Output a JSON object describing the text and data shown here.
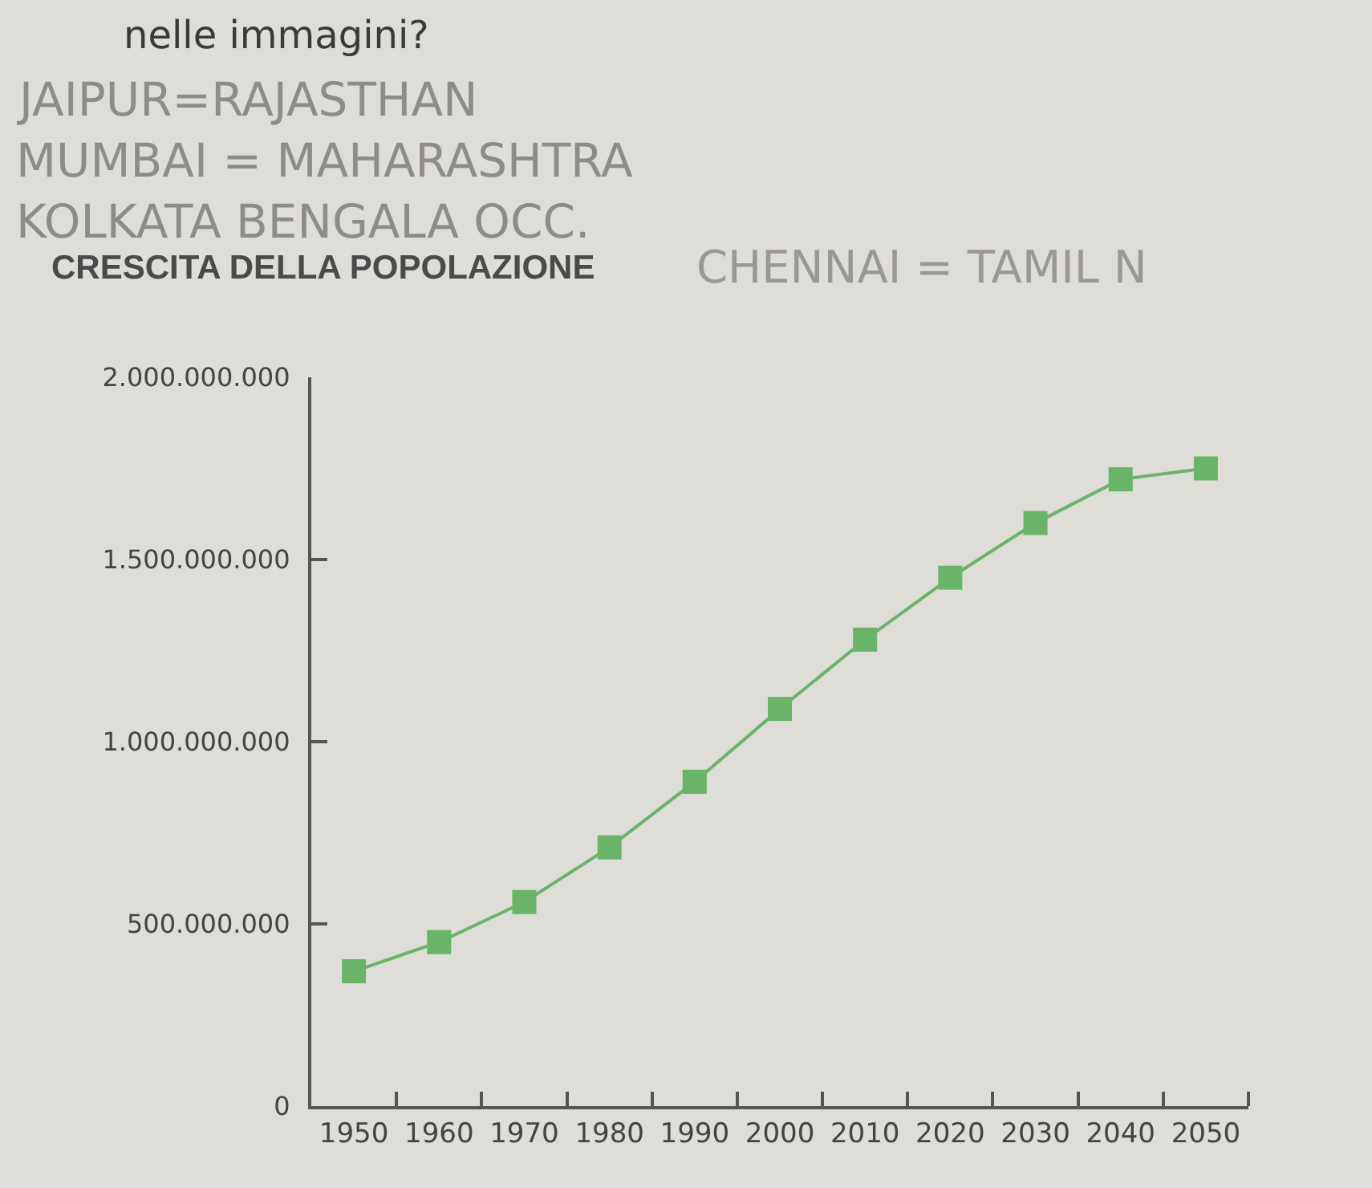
{
  "chart_data": {
    "type": "line",
    "title": "CRESCITA DELLA POPOLAZIONE",
    "annotations": [
      "nelle immagini?",
      "JAIPUR=RAJASTHAN",
      "MUMBAI = MAHARASHTRA",
      "KOLKATA BENGALA OCC.",
      "CHENNAI = TAMIL N"
    ],
    "x": [
      1950,
      1960,
      1970,
      1980,
      1990,
      2000,
      2010,
      2020,
      2030,
      2040,
      2050
    ],
    "series": [
      {
        "color": "#6ab46a",
        "values": [
          370000000,
          450000000,
          560000000,
          710000000,
          890000000,
          1090000000,
          1280000000,
          1450000000,
          1600000000,
          1720000000,
          1750000000
        ]
      }
    ],
    "xlim": [
      1945,
      2055
    ],
    "xticks": [
      1950,
      {
        "value": 1955,
        "label": null
      },
      1960,
      {
        "value": 1965,
        "label": null
      },
      1970,
      {
        "value": 1975,
        "label": null
      },
      1980,
      {
        "value": 1985,
        "label": null
      },
      1990,
      {
        "value": 1995,
        "label": null
      },
      2000,
      {
        "value": 2005,
        "label": null
      },
      2010,
      {
        "value": 2015,
        "label": null
      },
      2020,
      {
        "value": 2025,
        "label": null
      },
      2030,
      {
        "value": 2035,
        "label": null
      },
      2040,
      {
        "value": 2045,
        "label": null
      },
      2050,
      {
        "value": 2055,
        "label": null
      }
    ],
    "ylim": [
      0,
      2000000000
    ],
    "yticks": [
      0,
      {
        "value": 500000000,
        "label": "500.000.000"
      },
      {
        "value": 1000000000,
        "label": "1.000.000.000"
      },
      {
        "value": 1500000000,
        "label": "1.500.000.000"
      },
      {
        "value": 2000000000,
        "label": "2.000.000.000"
      }
    ],
    "marker": "square",
    "line_style": "solid"
  }
}
